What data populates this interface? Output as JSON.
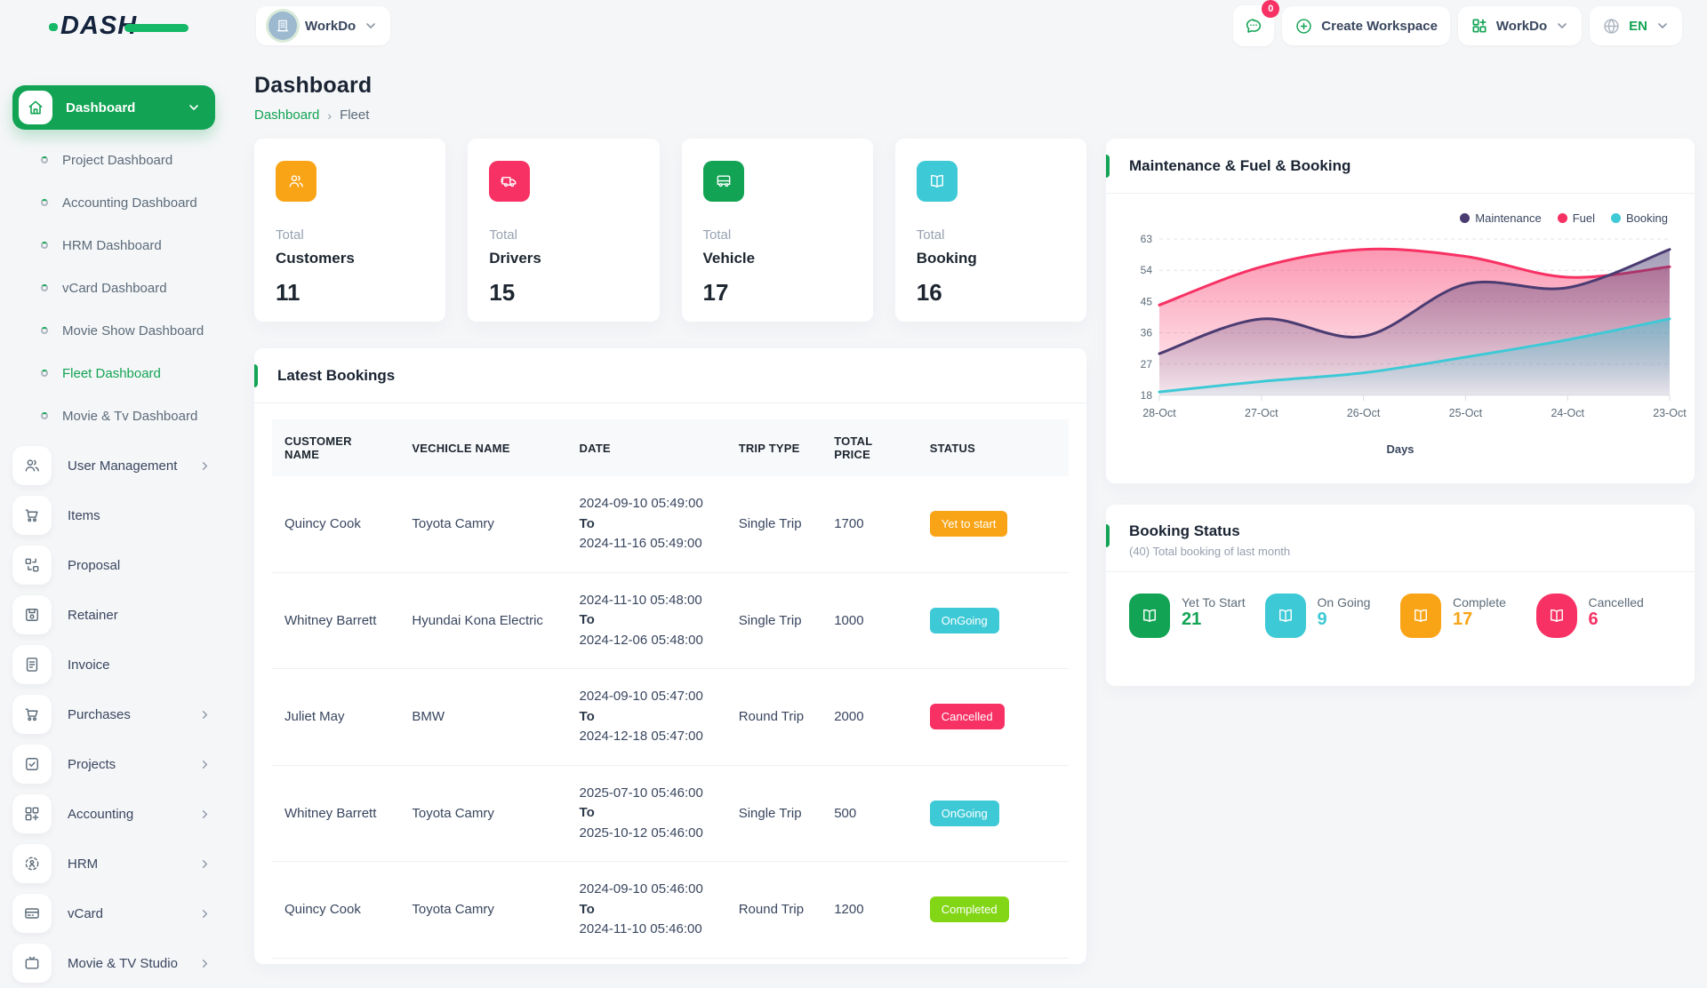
{
  "brand": {
    "logo_text": "DASH"
  },
  "topbar": {
    "workspace": {
      "label": "WorkDo"
    },
    "messages_badge": "0",
    "create_workspace_label": "Create Workspace",
    "workdo_dropdown_label": "WorkDo",
    "language": {
      "code": "EN"
    }
  },
  "sidebar": {
    "active_group": {
      "label": "Dashboard",
      "icon": "home"
    },
    "dashboard_children": [
      {
        "label": "Project Dashboard",
        "active": false
      },
      {
        "label": "Accounting Dashboard",
        "active": false
      },
      {
        "label": "HRM Dashboard",
        "active": false
      },
      {
        "label": "vCard Dashboard",
        "active": false
      },
      {
        "label": "Movie Show Dashboard",
        "active": false
      },
      {
        "label": "Fleet Dashboard",
        "active": true
      },
      {
        "label": "Movie & Tv Dashboard",
        "active": false
      }
    ],
    "menu": [
      {
        "label": "User Management",
        "icon": "users",
        "expandable": true
      },
      {
        "label": "Items",
        "icon": "cart",
        "expandable": false
      },
      {
        "label": "Proposal",
        "icon": "proposal",
        "expandable": false
      },
      {
        "label": "Retainer",
        "icon": "retainer",
        "expandable": false
      },
      {
        "label": "Invoice",
        "icon": "invoice",
        "expandable": false
      },
      {
        "label": "Purchases",
        "icon": "cart",
        "expandable": true
      },
      {
        "label": "Projects",
        "icon": "projects",
        "expandable": true
      },
      {
        "label": "Accounting",
        "icon": "accounting",
        "expandable": true
      },
      {
        "label": "HRM",
        "icon": "hrm",
        "expandable": true
      },
      {
        "label": "vCard",
        "icon": "vcard",
        "expandable": true
      },
      {
        "label": "Movie & TV Studio",
        "icon": "tv",
        "expandable": true
      }
    ]
  },
  "page": {
    "title": "Dashboard",
    "breadcrumb": [
      "Dashboard",
      "Fleet"
    ]
  },
  "stats": [
    {
      "prefix": "Total",
      "label": "Customers",
      "value": "11",
      "color": "#f9a416",
      "icon": "users"
    },
    {
      "prefix": "Total",
      "label": "Drivers",
      "value": "15",
      "color": "#f73164",
      "icon": "truck"
    },
    {
      "prefix": "Total",
      "label": "Vehicle",
      "value": "17",
      "color": "#12a454",
      "icon": "bus"
    },
    {
      "prefix": "Total",
      "label": "Booking",
      "value": "16",
      "color": "#3ec9d6",
      "icon": "book"
    }
  ],
  "bookings": {
    "title": "Latest Bookings",
    "columns": [
      "CUSTOMER NAME",
      "VECHICLE NAME",
      "DATE",
      "TRIP TYPE",
      "TOTAL PRICE",
      "STATUS"
    ],
    "date_separator": "To",
    "rows": [
      {
        "customer": "Quincy Cook",
        "vehicle": "Toyota Camry",
        "date_from": "2024-09-10 05:49:00",
        "date_to": "2024-11-16 05:49:00",
        "trip_type": "Single Trip",
        "total_price": "1700",
        "status": "Yet to start",
        "status_color": "#f9a416"
      },
      {
        "customer": "Whitney Barrett",
        "vehicle": "Hyundai Kona Electric",
        "date_from": "2024-11-10 05:48:00",
        "date_to": "2024-12-06 05:48:00",
        "trip_type": "Single Trip",
        "total_price": "1000",
        "status": "OnGoing",
        "status_color": "#3ec9d6"
      },
      {
        "customer": "Juliet May",
        "vehicle": "BMW",
        "date_from": "2024-09-10 05:47:00",
        "date_to": "2024-12-18 05:47:00",
        "trip_type": "Round Trip",
        "total_price": "2000",
        "status": "Cancelled",
        "status_color": "#f73164"
      },
      {
        "customer": "Whitney Barrett",
        "vehicle": "Toyota Camry",
        "date_from": "2025-07-10 05:46:00",
        "date_to": "2025-10-12 05:46:00",
        "trip_type": "Single Trip",
        "total_price": "500",
        "status": "OnGoing",
        "status_color": "#3ec9d6"
      },
      {
        "customer": "Quincy Cook",
        "vehicle": "Toyota Camry",
        "date_from": "2024-09-10 05:46:00",
        "date_to": "2024-11-10 05:46:00",
        "trip_type": "Round Trip",
        "total_price": "1200",
        "status": "Completed",
        "status_color": "#82d616"
      }
    ]
  },
  "chart_card": {
    "title": "Maintenance & Fuel & Booking"
  },
  "chart_data": {
    "type": "area",
    "x": [
      "28-Oct",
      "27-Oct",
      "26-Oct",
      "25-Oct",
      "24-Oct",
      "23-Oct"
    ],
    "series": [
      {
        "name": "Maintenance",
        "color": "#4a3b71",
        "values": [
          30,
          40,
          35,
          50,
          49,
          60
        ]
      },
      {
        "name": "Fuel",
        "color": "#f73164",
        "values": [
          44,
          55,
          60,
          58,
          52,
          55
        ]
      },
      {
        "name": "Booking",
        "color": "#3ec9d6",
        "values": [
          19,
          22,
          24.5,
          29,
          34,
          40
        ]
      }
    ],
    "xlabel": "Days",
    "yticks": [
      18,
      27,
      36,
      45,
      54,
      63
    ],
    "ylim": [
      18,
      63
    ],
    "legend_position": "top-right",
    "grid": "dashed-horizontal",
    "title": "Maintenance & Fuel & Booking"
  },
  "booking_status": {
    "title": "Booking Status",
    "subtitle": "(40) Total booking of last month",
    "items": [
      {
        "label": "Yet To Start",
        "value": "21",
        "color": "#12a454",
        "icon": "book"
      },
      {
        "label": "On Going",
        "value": "9",
        "color": "#3ec9d6",
        "icon": "book"
      },
      {
        "label": "Complete",
        "value": "17",
        "color": "#f9a416",
        "icon": "book"
      },
      {
        "label": "Cancelled",
        "value": "6",
        "color": "#f73164",
        "icon": "book"
      }
    ]
  }
}
